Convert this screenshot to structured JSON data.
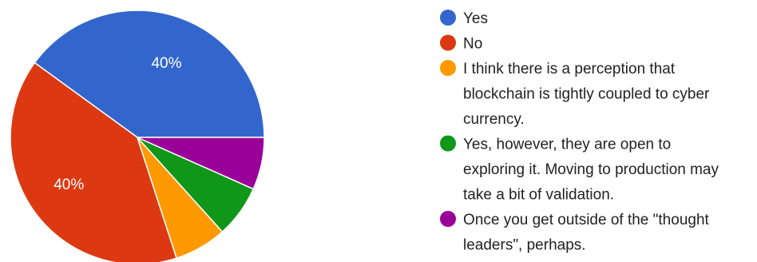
{
  "chart_data": {
    "type": "pie",
    "slices": [
      {
        "label": "Yes",
        "value": 40,
        "color": "#3366cc",
        "data_label": "40%"
      },
      {
        "label": "No",
        "value": 40,
        "color": "#dc3912",
        "data_label": "40%"
      },
      {
        "label": "I think there is a perception that blockchain is tightly coupled to cyber currency.",
        "value": 6.67,
        "color": "#ff9900",
        "data_label": ""
      },
      {
        "label": "Yes, however, they are open to exploring it. Moving to production may take a bit of validation.",
        "value": 6.67,
        "color": "#109618",
        "data_label": ""
      },
      {
        "label": "Once you get outside of the \"thought leaders\", perhaps.",
        "value": 6.66,
        "color": "#990099",
        "data_label": ""
      }
    ],
    "legend": [
      {
        "lines": [
          "Yes"
        ],
        "color": "#3366cc"
      },
      {
        "lines": [
          "No"
        ],
        "color": "#dc3912"
      },
      {
        "lines": [
          "I think there is a perception that",
          "blockchain is tightly coupled to cyber",
          "currency."
        ],
        "color": "#ff9900"
      },
      {
        "lines": [
          "Yes, however, they are open to",
          "exploring it. Moving to production may",
          "take a bit of validation."
        ],
        "color": "#109618"
      },
      {
        "lines": [
          "Once you get outside of the \"thought",
          "leaders\", perhaps."
        ],
        "color": "#990099"
      }
    ],
    "legend_position": "right",
    "start": "3 o'clock",
    "direction": "counter-clockwise"
  }
}
